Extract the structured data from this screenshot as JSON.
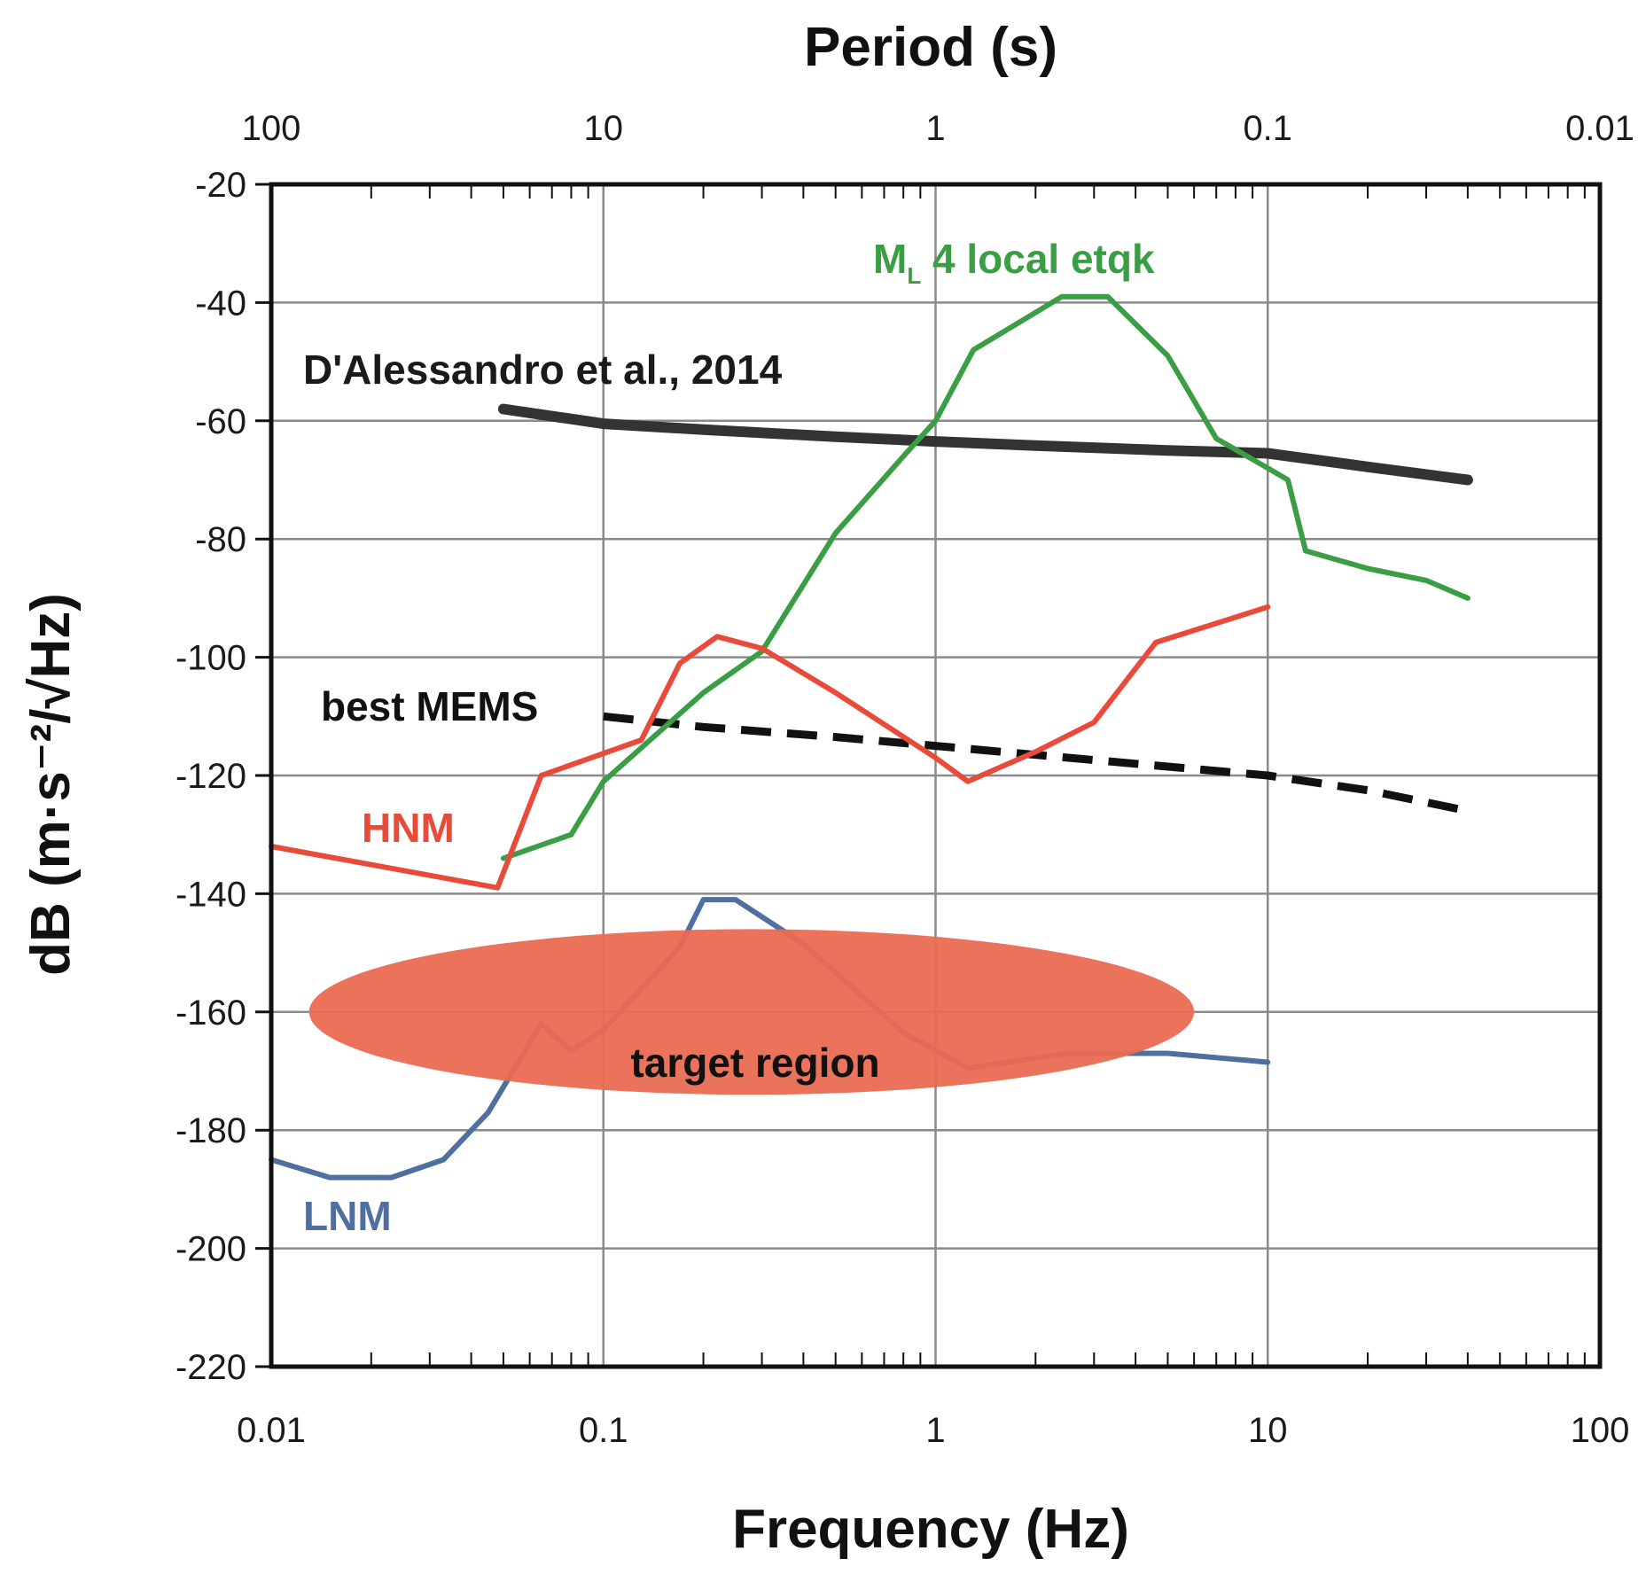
{
  "chart_data": {
    "type": "line",
    "x_scale": "log",
    "xlabel": "Frequency (Hz)",
    "x2label": "Period (s)",
    "ylabel": "dB (m·s⁻²/√Hz)",
    "xlim": [
      0.01,
      100
    ],
    "ylim": [
      -220,
      -20
    ],
    "grid": true,
    "x_ticks": [
      {
        "value": 0.01,
        "label": "0.01"
      },
      {
        "value": 0.1,
        "label": "0.1"
      },
      {
        "value": 1,
        "label": "1"
      },
      {
        "value": 10,
        "label": "10"
      },
      {
        "value": 100,
        "label": "100"
      }
    ],
    "x2_ticks": [
      {
        "value": 0.01,
        "label": "100"
      },
      {
        "value": 0.1,
        "label": "10"
      },
      {
        "value": 1,
        "label": "1"
      },
      {
        "value": 10,
        "label": "0.1"
      },
      {
        "value": 100,
        "label": "0.01"
      }
    ],
    "y_ticks": [
      -20,
      -40,
      -60,
      -80,
      -100,
      -120,
      -140,
      -160,
      -180,
      -200,
      -220
    ],
    "series": [
      {
        "name": "D'Alessandro et al., 2014",
        "label": "D'Alessandro et al., 2014",
        "color": "#333333",
        "style": "solid-thick",
        "x": [
          0.05,
          0.1,
          0.2,
          0.5,
          1,
          2,
          5,
          10,
          20,
          40
        ],
        "y": [
          -58,
          -60.5,
          -61.5,
          -62.7,
          -63.5,
          -64.2,
          -65,
          -65.5,
          -67.8,
          -70
        ]
      },
      {
        "name": "best MEMS",
        "label": "best MEMS",
        "color": "#111111",
        "style": "dashed",
        "x": [
          0.1,
          0.2,
          0.5,
          1,
          2,
          5,
          10,
          20,
          40
        ],
        "y": [
          -110,
          -111.8,
          -113.5,
          -115,
          -116.5,
          -118.5,
          -120,
          -122.5,
          -126
        ]
      },
      {
        "name": "ML 4 local etqk",
        "label_main": "M",
        "label_sub": "L",
        "label_rest": " 4 local etqk",
        "color": "#3a9e45",
        "style": "solid",
        "x": [
          0.05,
          0.08,
          0.1,
          0.2,
          0.3,
          0.5,
          0.8,
          1,
          1.3,
          2.4,
          3.3,
          5,
          7,
          10,
          11.5,
          13,
          20,
          30,
          40
        ],
        "y": [
          -134,
          -130,
          -121,
          -106,
          -99,
          -79,
          -66,
          -60,
          -48,
          -39,
          -39,
          -49,
          -63,
          -68,
          -70,
          -82,
          -85,
          -87,
          -90
        ]
      },
      {
        "name": "HNM",
        "label": "HNM",
        "color": "#e84b3a",
        "style": "solid",
        "x": [
          0.01,
          0.048,
          0.065,
          0.13,
          0.17,
          0.22,
          0.3,
          0.5,
          1,
          1.25,
          2,
          3,
          4.6,
          10
        ],
        "y": [
          -132,
          -139,
          -120,
          -114,
          -101,
          -96.5,
          -98.5,
          -106,
          -117,
          -121,
          -116,
          -111,
          -97.5,
          -91.5
        ]
      },
      {
        "name": "LNM",
        "label": "LNM",
        "color": "#4f6fa0",
        "style": "solid",
        "x": [
          0.01,
          0.015,
          0.023,
          0.033,
          0.045,
          0.065,
          0.08,
          0.1,
          0.17,
          0.2,
          0.25,
          0.4,
          0.8,
          1.25,
          2.5,
          5,
          10
        ],
        "y": [
          -185,
          -188,
          -188,
          -185,
          -177,
          -162,
          -166.5,
          -163,
          -149,
          -141,
          -141,
          -148.5,
          -163.5,
          -169.5,
          -167,
          -167,
          -168.5
        ]
      }
    ],
    "annotations": [
      {
        "text": "target region",
        "type": "ellipse",
        "color": "#ea6a52",
        "x_range": [
          0.013,
          6
        ],
        "y_center": -160,
        "y_half": 14
      }
    ]
  }
}
